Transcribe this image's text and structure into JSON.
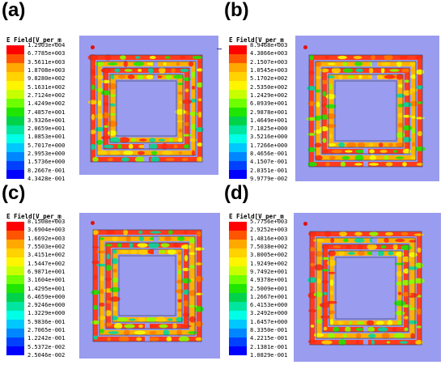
{
  "legend_title": "E Field[V_per_m",
  "swatch_colors": [
    "#ff0000",
    "#ff5500",
    "#ffa800",
    "#ffd200",
    "#fff500",
    "#c8ff00",
    "#6eff00",
    "#1ee600",
    "#00d24a",
    "#00e6a0",
    "#00ffe6",
    "#00c8ff",
    "#0087ff",
    "#0041ff",
    "#0000ff"
  ],
  "colors": {
    "background": "#9a9cef",
    "ring": "#ff3b1d",
    "ring_dark": "#d8261a"
  },
  "panels": [
    {
      "label": "(a)",
      "ticks": [
        "1.2903e+004",
        "6.7785e+003",
        "3.5611e+003",
        "1.8708e+003",
        "9.8280e+002",
        "5.1631e+002",
        "2.7124e+002",
        "1.4249e+002",
        "7.4857e+001",
        "3.9326e+001",
        "2.0659e+001",
        "1.0853e+001",
        "5.7017e+000",
        "2.9953e+000",
        "1.5736e+000",
        "8.2667e-001",
        "4.3428e-001"
      ]
    },
    {
      "label": "(b)",
      "ticks": [
        "8.9468e+003",
        "4.3866e+003",
        "2.1507e+003",
        "1.0545e+003",
        "5.1702e+002",
        "2.5350e+002",
        "1.2429e+002",
        "6.0939e+001",
        "2.9878e+001",
        "1.4649e+001",
        "7.1825e+000",
        "3.5216e+000",
        "1.7266e+000",
        "8.4656e-001",
        "4.1507e-001",
        "2.0351e-001",
        "9.9779e-002"
      ]
    },
    {
      "label": "(c)",
      "ticks": [
        "8.1508e+003",
        "3.6904e+003",
        "1.6692e+003",
        "7.5503e+002",
        "3.4151e+002",
        "1.5447e+002",
        "6.9871e+001",
        "3.1604e+001",
        "1.4295e+001",
        "6.4659e+000",
        "2.9246e+000",
        "1.3229e+000",
        "5.9836e-001",
        "2.7065e-001",
        "1.2242e-001",
        "5.5372e-002",
        "2.5046e-002"
      ]
    },
    {
      "label": "(d)",
      "ticks": [
        "5.7756e+003",
        "2.9252e+003",
        "1.4816e+003",
        "7.5038e+002",
        "3.8005e+002",
        "1.9249e+002",
        "9.7492e+001",
        "4.9378e+001",
        "2.5009e+001",
        "1.2667e+001",
        "6.4153e+000",
        "3.2492e+000",
        "1.6457e+000",
        "8.3350e-001",
        "4.2215e-001",
        "2.1381e-001",
        "1.0829e-001"
      ]
    }
  ]
}
